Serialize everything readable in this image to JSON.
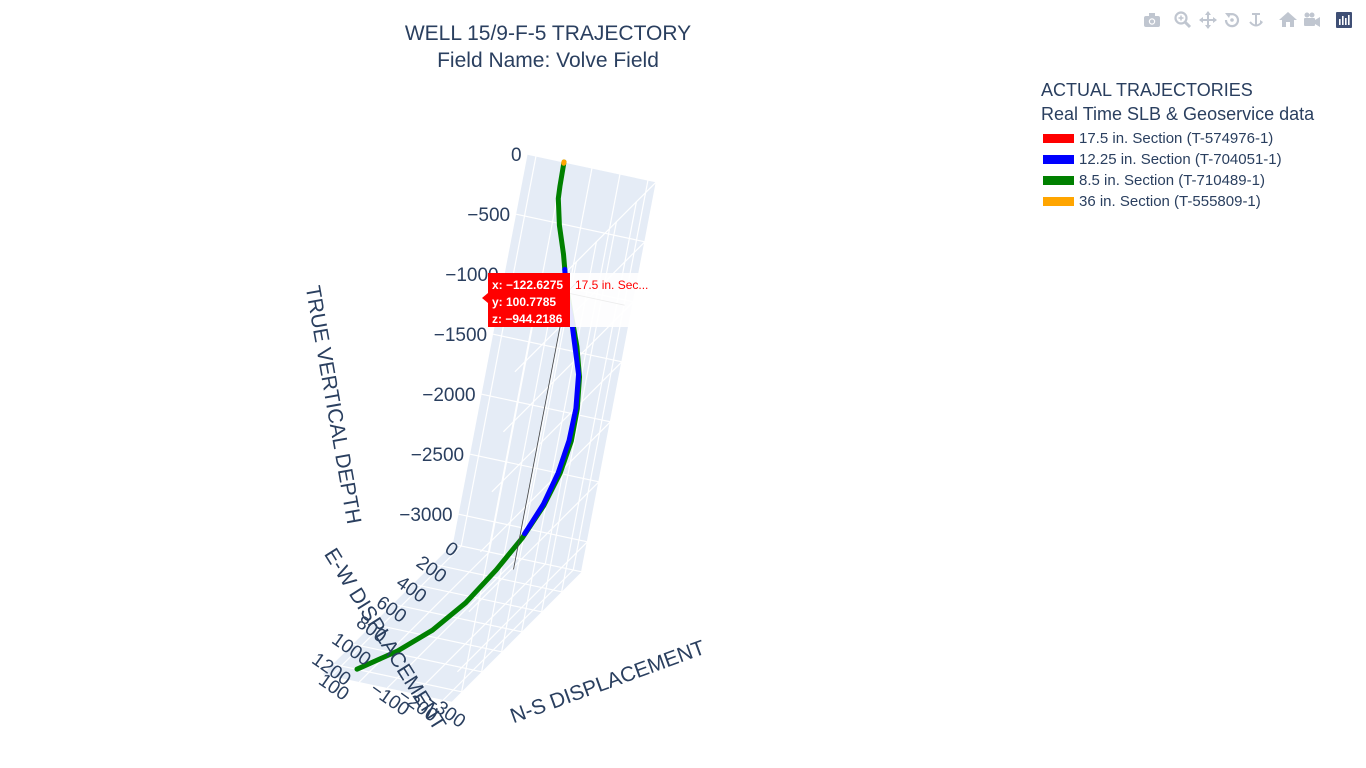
{
  "title": {
    "line1": "WELL 15/9-F-5 TRAJECTORY",
    "line2": "Field Name: Volve Field"
  },
  "modebar": {
    "icons": [
      "camera-icon",
      "zoom-icon",
      "pan-icon",
      "orbit-rotation-icon",
      "turntable-rotation-icon",
      "reset-camera-icon",
      "camera-view-icon",
      "plotly-logo-icon"
    ]
  },
  "legend": {
    "title_line1": "ACTUAL TRAJECTORIES",
    "title_line2": "Real Time SLB & Geoservice data",
    "items": [
      {
        "label": "17.5 in. Section (T-574976-1)",
        "color": "#ff0000"
      },
      {
        "label": "12.25 in. Section (T-704051-1)",
        "color": "#0000ff"
      },
      {
        "label": "8.5 in. Section (T-710489-1)",
        "color": "#008000"
      },
      {
        "label": "36 in. Section (T-555809-1)",
        "color": "#ffa500"
      }
    ]
  },
  "hover": {
    "x_text": "x: −122.6275",
    "y_text": "y: 100.7785",
    "z_text": "z: −944.2186",
    "name_text": "17.5 in. Sec...",
    "color": "#ff0000"
  },
  "chart_data": {
    "type": "line",
    "projection": "3d",
    "title": "WELL 15/9-F-5 TRAJECTORY",
    "subtitle": "Field Name: Volve Field",
    "axes": {
      "z": {
        "label": "TRUE VERTICAL DEPTH",
        "ticks": [
          "0",
          "−500",
          "−1000",
          "−1500",
          "−2000",
          "−2500",
          "−3000"
        ],
        "range": [
          -3250,
          0
        ]
      },
      "y": {
        "label": "E-W DISPLACEMENT",
        "ticks": [
          "0",
          "200",
          "400",
          "600",
          "800",
          "1000",
          "1200"
        ],
        "range": [
          0,
          1300
        ]
      },
      "x": {
        "label": "N-S DISPLACEMENT",
        "ticks": [
          "100",
          "−100",
          "−200",
          "−300"
        ],
        "range": [
          -330,
          130
        ]
      }
    },
    "series": [
      {
        "name": "8.5 in. Section (T-710489-1)",
        "color": "#008000",
        "points": [
          [
            0,
            0,
            0
          ],
          [
            -2,
            0,
            -200
          ],
          [
            -5,
            2,
            -300
          ],
          [
            -30,
            15,
            -500
          ],
          [
            -70,
            40,
            -700
          ],
          [
            -110,
            80,
            -900
          ],
          [
            -160,
            120,
            -1100
          ],
          [
            -210,
            160,
            -1300
          ],
          [
            -250,
            200,
            -1500
          ],
          [
            -280,
            260,
            -1700
          ],
          [
            -300,
            330,
            -1900
          ],
          [
            -305,
            410,
            -2100
          ],
          [
            -295,
            500,
            -2300
          ],
          [
            -270,
            600,
            -2500
          ],
          [
            -230,
            700,
            -2700
          ],
          [
            -180,
            820,
            -2900
          ],
          [
            -120,
            950,
            -3050
          ],
          [
            -50,
            1080,
            -3150
          ],
          [
            30,
            1250,
            -3200
          ]
        ]
      },
      {
        "name": "12.25 in. Section (T-704051-1)",
        "color": "#0000ff",
        "points": [
          [
            -90,
            60,
            -800
          ],
          [
            -120,
            100,
            -944
          ],
          [
            -160,
            125,
            -1100
          ],
          [
            -200,
            160,
            -1280
          ],
          [
            -245,
            200,
            -1480
          ],
          [
            -275,
            260,
            -1700
          ],
          [
            -292,
            330,
            -1900
          ],
          [
            -298,
            410,
            -2100
          ],
          [
            -290,
            490,
            -2300
          ],
          [
            -270,
            580,
            -2480
          ]
        ]
      },
      {
        "name": "17.5 in. Section (T-574976-1)",
        "color": "#ff0000",
        "points": [
          [
            -118,
            98,
            -930
          ],
          [
            -122.6275,
            100.7785,
            -944.2186
          ],
          [
            -126,
            103,
            -955
          ]
        ]
      },
      {
        "name": "36 in. Section (T-555809-1)",
        "color": "#ffa500",
        "points": [
          [
            0,
            0,
            0
          ],
          [
            0,
            0,
            -10
          ]
        ]
      }
    ],
    "hover_point": {
      "x": -122.6275,
      "y": 100.7785,
      "z": -944.2186,
      "series": "17.5 in. Section (T-574976-1)"
    }
  }
}
